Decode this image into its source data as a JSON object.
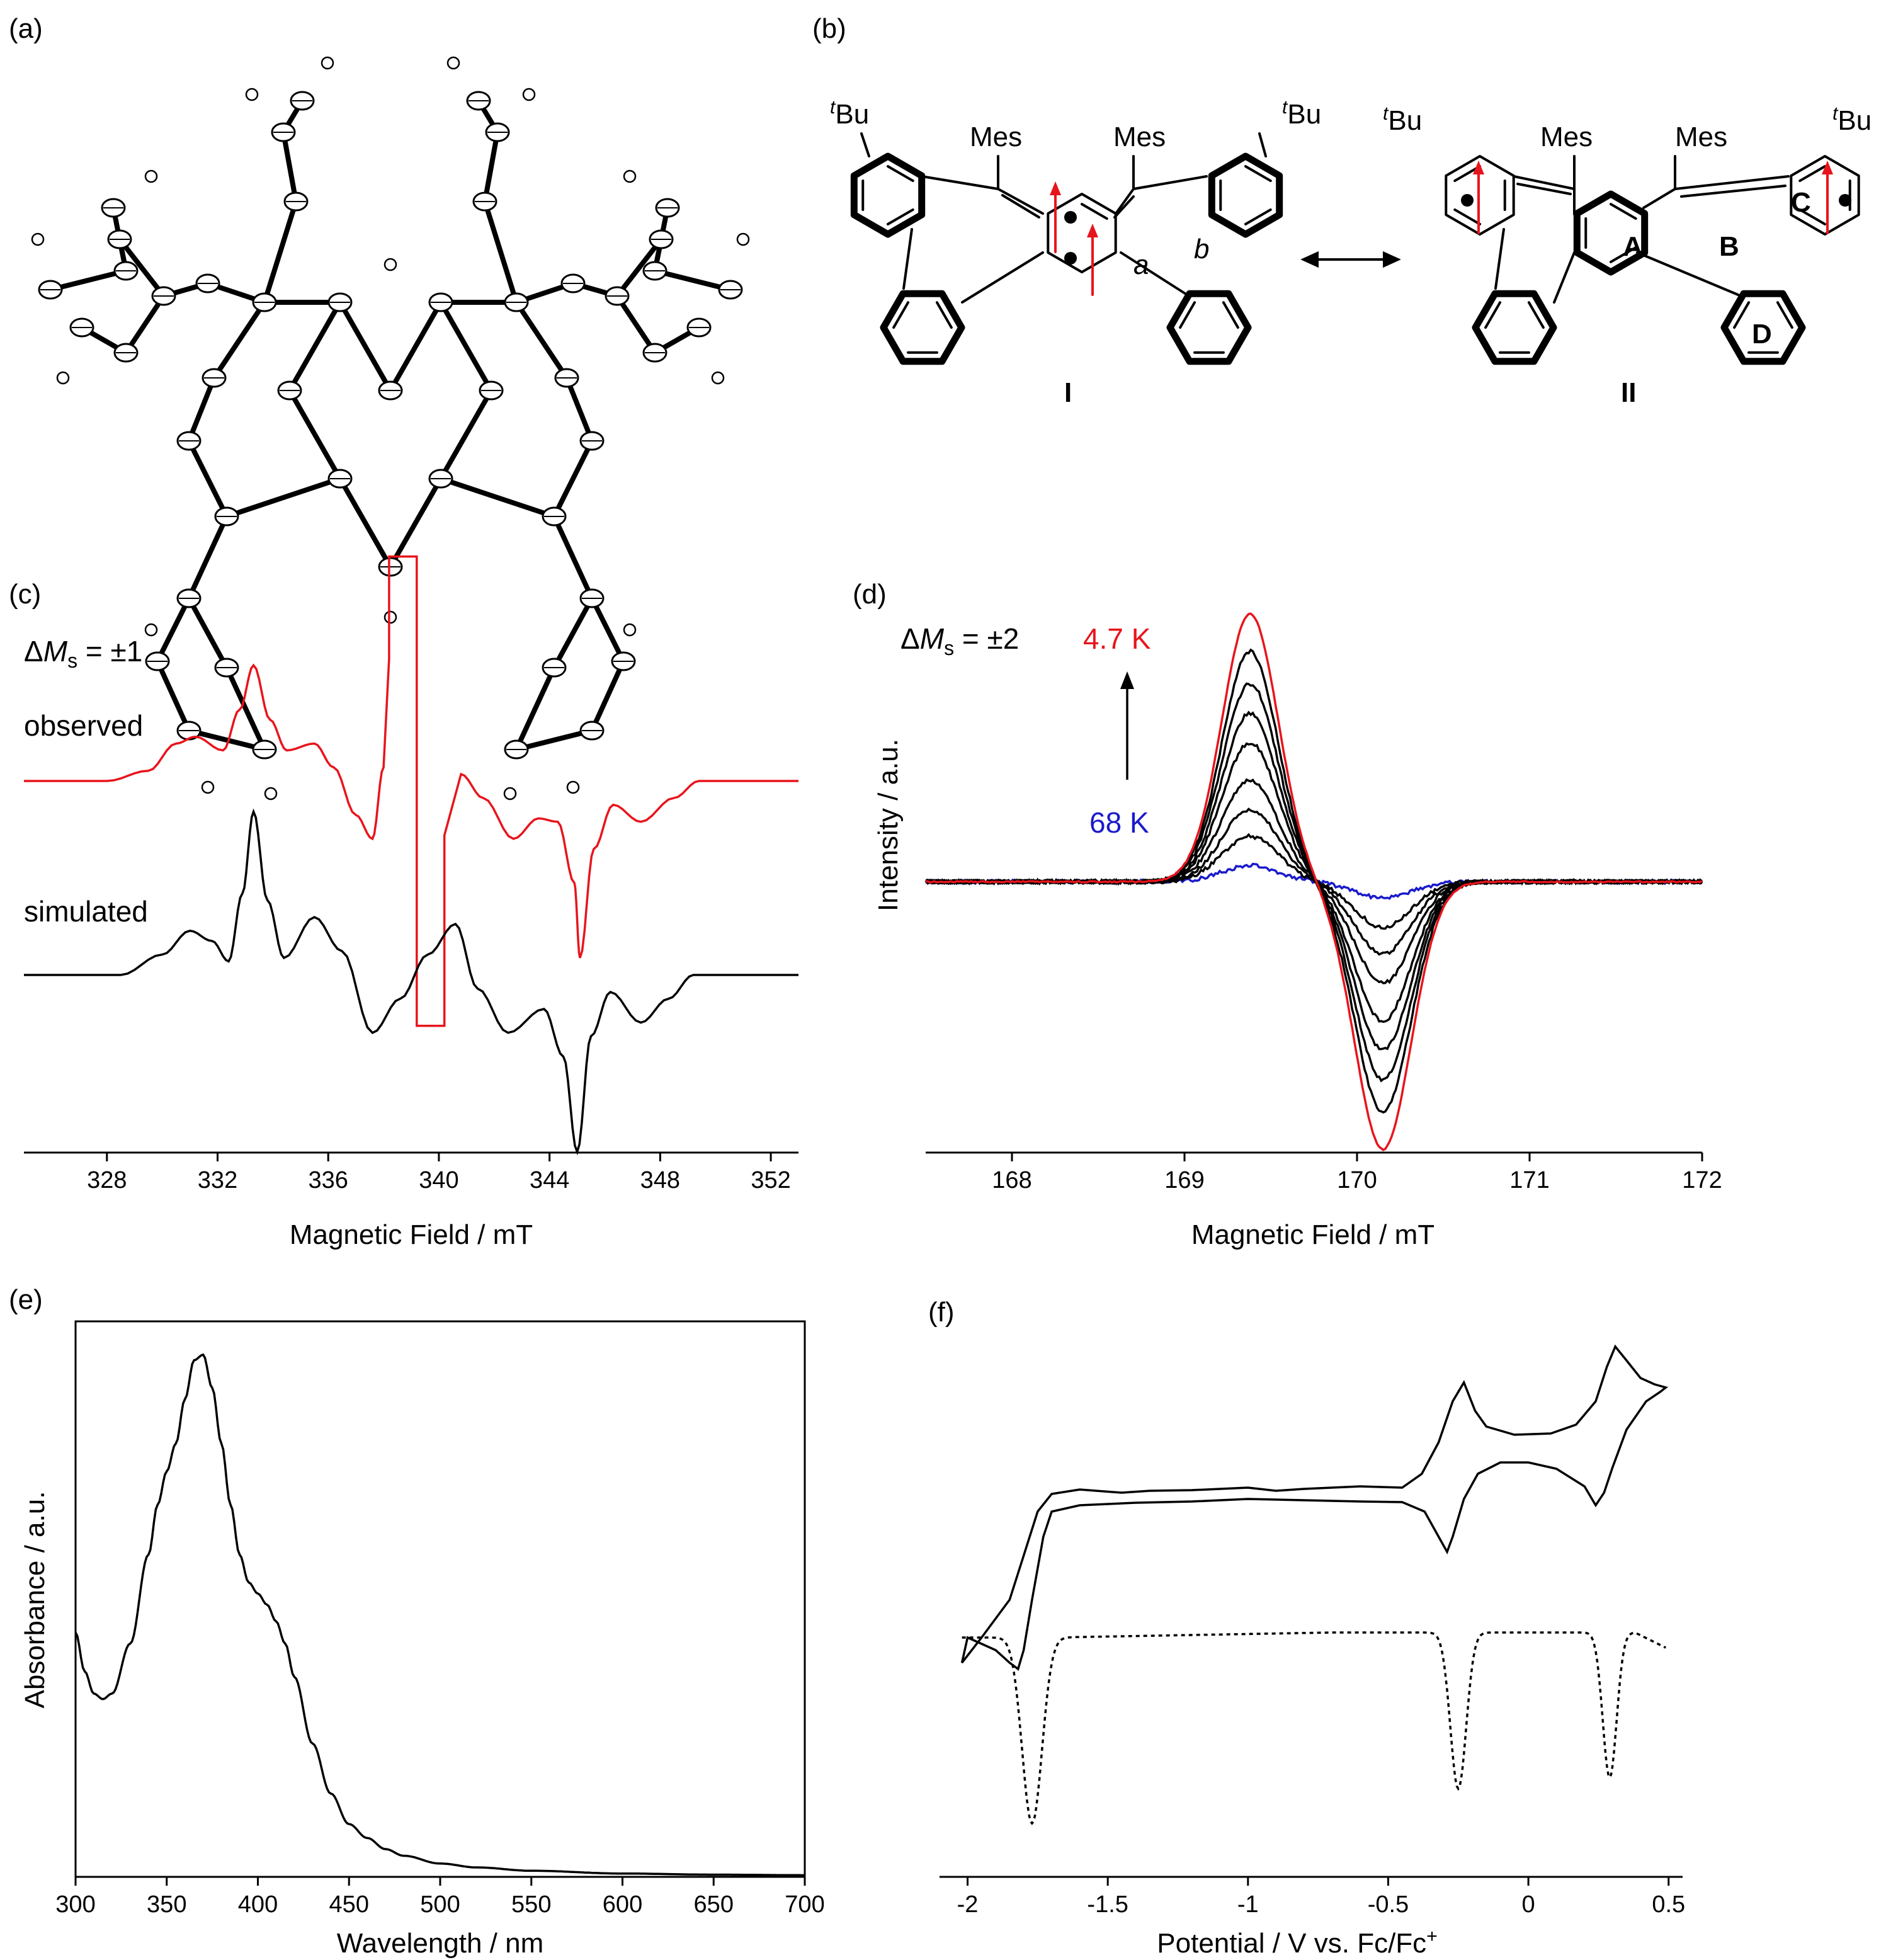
{
  "panels": {
    "a": {
      "label": "(a)",
      "description_kind": "ORTEP crystal structure"
    },
    "b": {
      "label": "(b)",
      "substituent_tBu_sup": "t",
      "substituent_tBu": "Bu",
      "substituent_mes": "Mes",
      "bond_a": "a",
      "bond_b": "b",
      "structure_I": "I",
      "structure_II": "II",
      "rings": [
        "A",
        "B",
        "C",
        "D"
      ],
      "arrow_color": "#e8141c"
    },
    "c": {
      "label": "(c)"
    },
    "d": {
      "label": "(d)"
    },
    "e": {
      "label": "(e)"
    },
    "f": {
      "label": "(f)"
    }
  },
  "colors": {
    "red": "#e8141c",
    "blue": "#1a1acc",
    "black": "#000000"
  },
  "chart_data": [
    {
      "id": "c",
      "type": "line",
      "title": "",
      "xlabel": "Magnetic Field / mT",
      "ylabel": "",
      "xlim": [
        325,
        353
      ],
      "xticks": [
        328,
        332,
        336,
        340,
        344,
        348,
        352
      ],
      "annotation": {
        "delta": "Δ",
        "M": "M",
        "sub": "s",
        "rest": " = ±1"
      },
      "series_labels": {
        "observed": "observed",
        "simulated": "simulated"
      },
      "series": [
        {
          "name": "observed",
          "color": "#e8141c",
          "x": [
            325,
            328,
            329.5,
            330.5,
            331.2,
            332.2,
            332.8,
            333.3,
            333.9,
            334.5,
            335.5,
            336.2,
            337.0,
            337.6,
            338.0,
            338.2,
            338.2,
            339.2,
            339.2,
            340.2,
            340.2,
            340.8,
            341.6,
            342.7,
            343.6,
            344.3,
            344.9,
            345.1,
            345.6,
            346.3,
            347.3,
            348.5,
            349.4,
            353
          ],
          "y": [
            0,
            0,
            0.15,
            0.55,
            0.65,
            0.45,
            1.05,
            1.7,
            0.9,
            0.45,
            0.55,
            0.2,
            -0.5,
            -0.85,
            0.2,
            1.8,
            3.3,
            3.3,
            -3.6,
            -3.6,
            -0.8,
            0.1,
            -0.25,
            -0.85,
            -0.55,
            -0.6,
            -1.5,
            -2.6,
            -1.0,
            -0.35,
            -0.6,
            -0.25,
            0,
            0
          ]
        },
        {
          "name": "simulated",
          "color": "#000000",
          "x": [
            325,
            328.5,
            330,
            331.0,
            331.8,
            332.4,
            332.9,
            333.3,
            333.8,
            334.4,
            335.5,
            336.5,
            337.6,
            338.6,
            339.6,
            340.6,
            341.4,
            342.5,
            343.8,
            344.5,
            345.0,
            345.5,
            346.2,
            347.3,
            348.3,
            349.2,
            353
          ],
          "y": [
            0,
            0,
            0.3,
            0.65,
            0.5,
            0.2,
            1.2,
            2.4,
            1.1,
            0.25,
            0.85,
            0.35,
            -0.85,
            -0.35,
            0.3,
            0.75,
            -0.2,
            -0.85,
            -0.5,
            -1.2,
            -2.6,
            -0.9,
            -0.25,
            -0.7,
            -0.35,
            0,
            0
          ]
        }
      ]
    },
    {
      "id": "d",
      "type": "line",
      "title": "",
      "xlabel": "Magnetic Field / mT",
      "ylabel": "Intensity / a.u.",
      "xlim": [
        167.5,
        172
      ],
      "xticks": [
        168,
        169,
        170,
        171,
        172
      ],
      "annotation": {
        "delta": "Δ",
        "M": "M",
        "sub": "s",
        "rest": " = ±2"
      },
      "series": [
        {
          "name": "4.7 K",
          "color": "#e8141c",
          "scale": 1.0
        },
        {
          "name": "",
          "color": "#000000",
          "scale": 0.86
        },
        {
          "name": "",
          "color": "#000000",
          "scale": 0.74
        },
        {
          "name": "",
          "color": "#000000",
          "scale": 0.63
        },
        {
          "name": "",
          "color": "#000000",
          "scale": 0.52
        },
        {
          "name": "",
          "color": "#000000",
          "scale": 0.38
        },
        {
          "name": "",
          "color": "#000000",
          "scale": 0.27
        },
        {
          "name": "",
          "color": "#000000",
          "scale": 0.17
        },
        {
          "name": "68 K",
          "color": "#1a1acc",
          "scale": 0.06
        }
      ],
      "peak_center": 169.38,
      "trough_center": 170.15,
      "crossover": 169.8
    },
    {
      "id": "e",
      "type": "line",
      "title": "",
      "xlabel": "Wavelength / nm",
      "ylabel": "Absorbance / a.u.",
      "xlim": [
        300,
        700
      ],
      "ylim": [
        0,
        1.0
      ],
      "xticks": [
        300,
        350,
        400,
        450,
        500,
        550,
        600,
        650,
        700
      ],
      "series": [
        {
          "name": "",
          "color": "#000000",
          "x": [
            300,
            305,
            310,
            315,
            320,
            330,
            340,
            345,
            350,
            355,
            360,
            365,
            370,
            375,
            380,
            385,
            390,
            395,
            400,
            405,
            410,
            415,
            420,
            430,
            440,
            450,
            460,
            470,
            480,
            500,
            520,
            550,
            600,
            650,
            700
          ],
          "y": [
            0.44,
            0.37,
            0.33,
            0.32,
            0.33,
            0.42,
            0.58,
            0.67,
            0.73,
            0.78,
            0.86,
            0.93,
            0.94,
            0.88,
            0.78,
            0.67,
            0.58,
            0.53,
            0.51,
            0.49,
            0.46,
            0.42,
            0.36,
            0.24,
            0.15,
            0.095,
            0.07,
            0.05,
            0.038,
            0.024,
            0.017,
            0.011,
            0.006,
            0.004,
            0.003
          ]
        }
      ]
    },
    {
      "id": "f",
      "type": "line",
      "title": "",
      "xlabel": "Potential / V vs. Fc/Fc",
      "xlabel_sup": "+",
      "ylabel": "",
      "xlim": [
        -2.1,
        0.55
      ],
      "xticks": [
        -2,
        -1.5,
        -1,
        -0.5,
        0,
        0.5
      ],
      "xticklabels": [
        "-2",
        "-1.5",
        "-1",
        "-0.5",
        "0",
        "0.5"
      ],
      "series": [
        {
          "name": "",
          "color": "#000000",
          "style": "solid",
          "kind": "CV"
        },
        {
          "name": "",
          "color": "#000000",
          "style": "dotted",
          "kind": "DPV",
          "peaks": [
            -1.77,
            -0.25,
            0.29
          ]
        }
      ]
    }
  ]
}
